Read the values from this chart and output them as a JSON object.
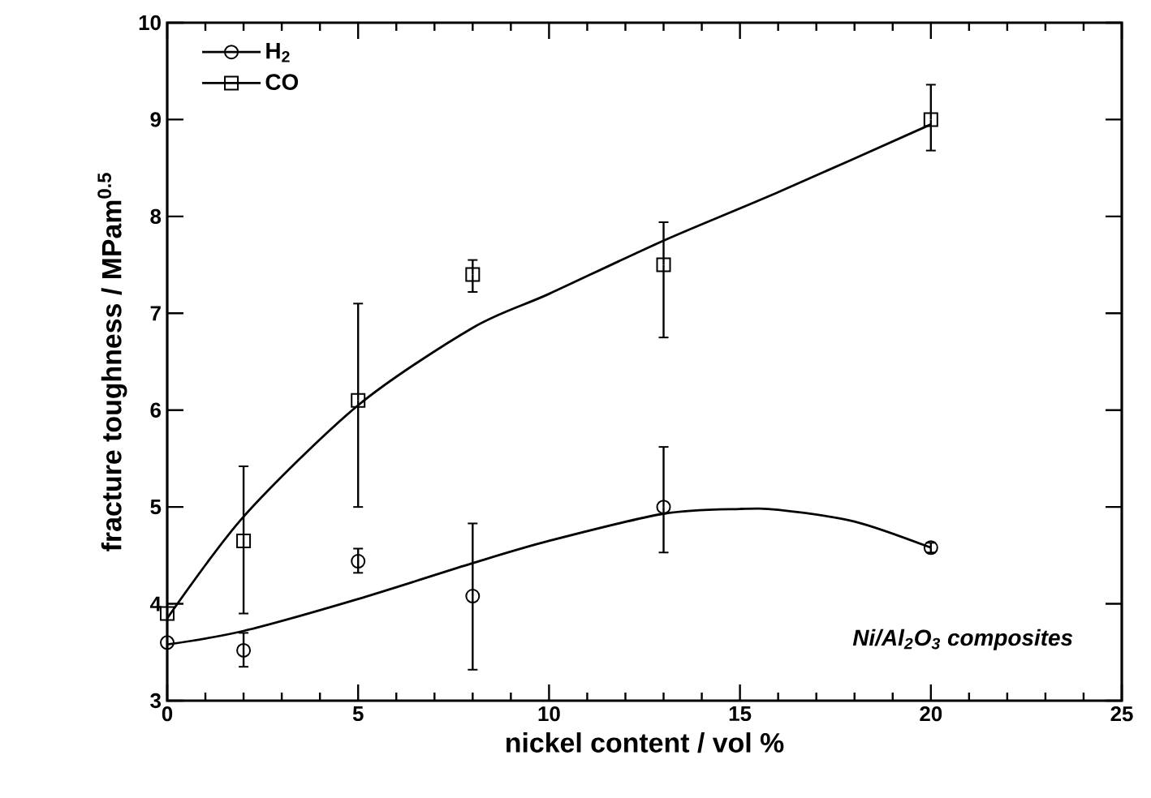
{
  "chart_data": {
    "type": "line",
    "xlabel": "nickel content / vol %",
    "ylabel": "fracture toughness / MPam$^{0.5}$",
    "annotations": [
      "*Ni/Al$_{2}$O$_{3}$ composites*"
    ],
    "xlim": [
      0,
      25
    ],
    "ylim": [
      3,
      10
    ],
    "xticks": [
      0,
      5,
      10,
      15,
      20,
      25
    ],
    "yticks": [
      3,
      4,
      5,
      6,
      7,
      8,
      9,
      10
    ],
    "legend": "top left",
    "series": [
      {
        "name": "H$_{2}$",
        "type": "scatter",
        "marker": "circle",
        "color": "#000000",
        "x": [
          0,
          2,
          5,
          8,
          13,
          20
        ],
        "values": [
          3.6,
          3.52,
          4.44,
          4.08,
          5.0,
          4.58
        ],
        "errors": [
          null,
          [
            3.35,
            3.7
          ],
          [
            4.32,
            4.57
          ],
          [
            3.32,
            4.83
          ],
          [
            4.53,
            5.62
          ],
          [
            4.53,
            4.63
          ]
        ]
      },
      {
        "name": "CO",
        "type": "scatter",
        "marker": "square",
        "color": "#000000",
        "x": [
          0,
          2,
          5,
          8,
          13,
          20
        ],
        "values": [
          3.9,
          4.65,
          6.1,
          7.4,
          7.5,
          9.0
        ],
        "errors": [
          null,
          [
            3.9,
            5.42
          ],
          [
            5.0,
            7.1
          ],
          [
            7.22,
            7.55
          ],
          [
            6.75,
            7.94
          ],
          [
            8.68,
            9.36
          ]
        ]
      },
      {
        "marker": "none",
        "color": "#000000",
        "x": [
          0,
          2,
          5,
          8,
          10,
          13,
          15,
          16,
          18,
          20
        ],
        "values": [
          3.58,
          3.72,
          4.05,
          4.42,
          4.65,
          4.93,
          4.98,
          4.97,
          4.85,
          4.58
        ]
      },
      {
        "marker": "none",
        "color": "#000000",
        "x": [
          0,
          2,
          5,
          8,
          10,
          13,
          16,
          20
        ],
        "values": [
          3.85,
          4.9,
          6.05,
          6.85,
          7.2,
          7.75,
          8.25,
          8.95
        ]
      }
    ]
  }
}
